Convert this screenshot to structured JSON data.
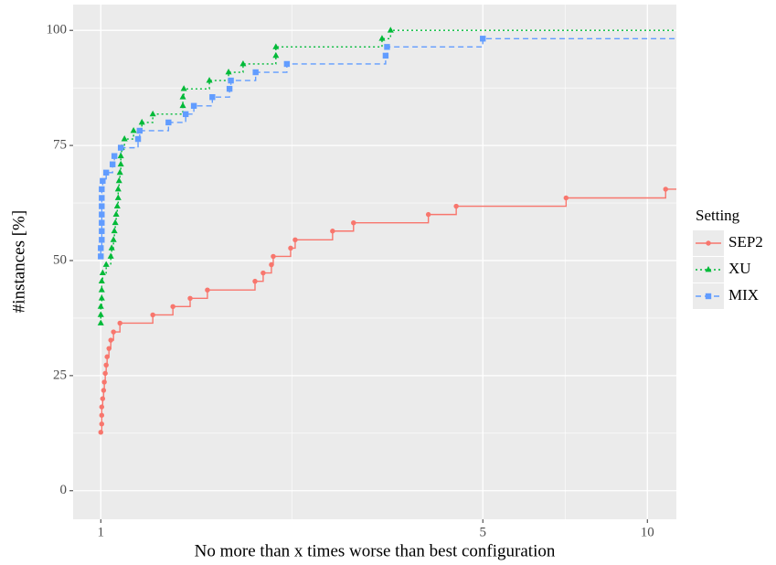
{
  "chart_data": {
    "type": "step",
    "x_label": "No more than x times worse than best configuration",
    "y_label": "#instances [%]",
    "legend_title": "Setting",
    "log_x": true,
    "grid": true,
    "legend": "right",
    "xlim": [
      0.89,
      11.3
    ],
    "xticks": [
      1,
      5,
      10
    ],
    "ylim": [
      -6.2,
      105.6
    ],
    "yticks": [
      0,
      25,
      50,
      75,
      100
    ],
    "series": [
      {
        "name": "SEP2",
        "color": "#F8766D",
        "marker": "circle",
        "dash": "solid",
        "x": [
          1,
          1.004,
          1.004,
          1.004,
          1.008,
          1.012,
          1.015,
          1.019,
          1.023,
          1.027,
          1.035,
          1.043,
          1.055,
          1.084,
          1.245,
          1.355,
          1.457,
          1.567,
          1.915,
          1.982,
          2.052,
          2.068,
          2.225,
          2.268,
          2.655,
          2.9,
          3.975,
          4.47,
          7.1,
          10.8
        ],
        "values": [
          12.7,
          14.5,
          16.4,
          18.2,
          20,
          21.8,
          23.6,
          25.5,
          27.3,
          29.1,
          30.9,
          32.7,
          34.5,
          36.4,
          38.2,
          40,
          41.8,
          43.6,
          45.5,
          47.3,
          49.1,
          50.9,
          52.7,
          54.5,
          56.4,
          58.2,
          60,
          61.8,
          63.6,
          65.5
        ]
      },
      {
        "name": "XU",
        "color": "#00BA38",
        "marker": "triangle",
        "dash": "dotted",
        "x": [
          1,
          1,
          1,
          1.004,
          1.004,
          1.004,
          1.008,
          1.023,
          1.043,
          1.047,
          1.055,
          1.059,
          1.063,
          1.067,
          1.072,
          1.076,
          1.076,
          1.08,
          1.084,
          1.088,
          1.088,
          1.092,
          1.105,
          1.148,
          1.189,
          1.245,
          1.413,
          1.413,
          1.419,
          1.58,
          1.713,
          1.821,
          2.091,
          2.091,
          3.27,
          3.39
        ],
        "values": [
          36.4,
          38.2,
          40,
          41.8,
          43.6,
          45.5,
          47.3,
          49.1,
          50.9,
          52.7,
          54.5,
          56.4,
          58.2,
          60,
          61.8,
          63.6,
          65.5,
          67.3,
          69.1,
          70.9,
          72.7,
          74.5,
          76.4,
          78.2,
          80,
          81.8,
          83.6,
          85.5,
          87.3,
          89.1,
          90.9,
          92.7,
          94.5,
          96.4,
          98.2,
          100
        ]
      },
      {
        "name": "MIX",
        "color": "#619CFF",
        "marker": "square",
        "dash": "dashed",
        "x": [
          1,
          1,
          1.004,
          1.004,
          1.004,
          1.004,
          1.004,
          1.004,
          1.004,
          1.008,
          1.023,
          1.051,
          1.059,
          1.088,
          1.17,
          1.178,
          1.33,
          1.43,
          1.48,
          1.6,
          1.72,
          1.73,
          1.92,
          2.19,
          3.32,
          3.34,
          5.0
        ],
        "values": [
          50.9,
          52.7,
          54.5,
          56.4,
          58.2,
          60,
          61.8,
          63.6,
          65.5,
          67.3,
          69.1,
          70.9,
          72.7,
          74.5,
          76.4,
          78.2,
          80,
          81.8,
          83.6,
          85.5,
          87.3,
          89.1,
          90.9,
          92.7,
          94.5,
          96.4,
          98.2
        ]
      }
    ]
  }
}
